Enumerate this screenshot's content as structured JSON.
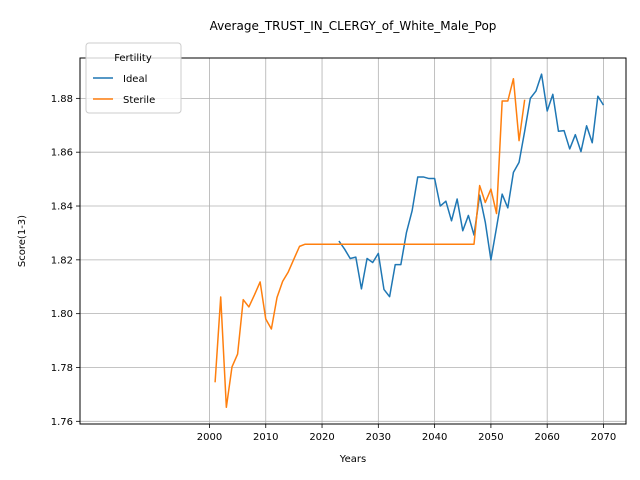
{
  "chart_data": {
    "type": "line",
    "title": "Average_TRUST_IN_CLERGY_of_White_Male_Pop",
    "xlabel": "Years",
    "ylabel": "Score(1-3)",
    "xlim": [
      1977,
      2074
    ],
    "ylim": [
      1.759,
      1.895
    ],
    "xticks": [
      2000,
      2010,
      2020,
      2030,
      2040,
      2050,
      2060,
      2070
    ],
    "yticks": [
      1.76,
      1.78,
      1.8,
      1.82,
      1.84,
      1.86,
      1.88
    ],
    "ytick_labels": [
      "1.76",
      "1.78",
      "1.80",
      "1.82",
      "1.84",
      "1.86",
      "1.88"
    ],
    "grid": true,
    "legend": {
      "title": "Fertility",
      "placement": "top-left",
      "entries": [
        "Ideal",
        "Sterile"
      ]
    },
    "series": [
      {
        "name": "Ideal",
        "color": "#1f77b4",
        "x": [
          2023,
          2024,
          2025,
          2026,
          2027,
          2028,
          2029,
          2030,
          2031,
          2032,
          2033,
          2034,
          2035,
          2036,
          2037,
          2038,
          2039,
          2040,
          2041,
          2042,
          2043,
          2044,
          2045,
          2046,
          2047,
          2048,
          2049,
          2050,
          2051,
          2052,
          2053,
          2054,
          2055,
          2056,
          2057,
          2058,
          2059,
          2060,
          2061,
          2062,
          2063,
          2064,
          2065,
          2066,
          2067,
          2068,
          2069,
          2070
        ],
        "y": [
          1.827,
          1.824,
          1.8205,
          1.821,
          1.8092,
          1.8205,
          1.819,
          1.8224,
          1.809,
          1.8063,
          1.8182,
          1.8182,
          1.8302,
          1.8382,
          1.8508,
          1.8508,
          1.8502,
          1.8502,
          1.84,
          1.8418,
          1.8345,
          1.8426,
          1.8308,
          1.8365,
          1.8292,
          1.844,
          1.834,
          1.82,
          1.832,
          1.8444,
          1.8393,
          1.8525,
          1.8562,
          1.8678,
          1.88,
          1.8827,
          1.889,
          1.8753,
          1.8815,
          1.8678,
          1.868,
          1.8612,
          1.8665,
          1.8602,
          1.8698,
          1.8635,
          1.8808,
          1.8775
        ]
      },
      {
        "name": "Sterile",
        "color": "#ff7f0e",
        "x": [
          2001,
          2002,
          2003,
          2004,
          2005,
          2006,
          2007,
          2008,
          2009,
          2010,
          2011,
          2012,
          2013,
          2014,
          2015,
          2016,
          2017,
          2018,
          2019,
          2020,
          2021,
          2022,
          2023,
          2024,
          2025,
          2026,
          2027,
          2028,
          2029,
          2030,
          2031,
          2032,
          2033,
          2034,
          2035,
          2036,
          2037,
          2038,
          2039,
          2040,
          2041,
          2042,
          2043,
          2044,
          2045,
          2046,
          2047,
          2048,
          2049,
          2050,
          2051,
          2052,
          2053,
          2054,
          2055,
          2056
        ],
        "y": [
          1.7745,
          1.8062,
          1.7652,
          1.7802,
          1.785,
          1.8052,
          1.8025,
          1.807,
          1.8118,
          1.798,
          1.7943,
          1.806,
          1.812,
          1.8155,
          1.8203,
          1.825,
          1.8258,
          1.8258,
          1.8258,
          1.8258,
          1.8258,
          1.8258,
          1.8258,
          1.8258,
          1.8258,
          1.8258,
          1.8258,
          1.8258,
          1.8258,
          1.8258,
          1.8258,
          1.8258,
          1.8258,
          1.8258,
          1.8258,
          1.8258,
          1.8258,
          1.8258,
          1.8258,
          1.8258,
          1.8258,
          1.8258,
          1.8258,
          1.8258,
          1.8258,
          1.8258,
          1.8258,
          1.8476,
          1.8413,
          1.8463,
          1.8372,
          1.879,
          1.879,
          1.8873,
          1.8643,
          1.8795
        ]
      }
    ]
  }
}
